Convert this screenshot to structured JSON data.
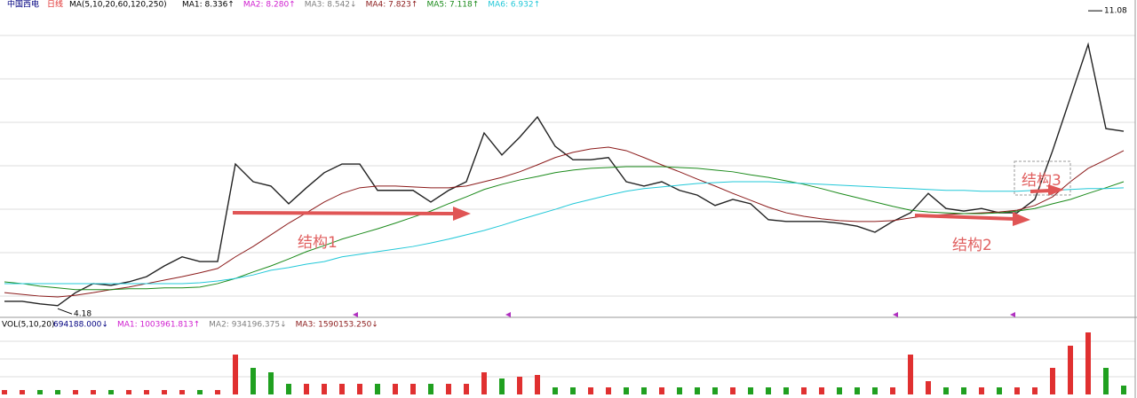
{
  "header": {
    "name": "中国西电",
    "period": "日线",
    "ma_label": "MA(5,10,20,60,120,250)",
    "items": [
      {
        "text": "MA1: 8.336↑",
        "color": "#000000"
      },
      {
        "text": "MA2: 8.280↑",
        "color": "#d020d0"
      },
      {
        "text": "MA3: 8.542↓",
        "color": "#808080"
      },
      {
        "text": "MA4: 7.823↑",
        "color": "#8b1a1a"
      },
      {
        "text": "MA5: 7.118↑",
        "color": "#1a8a1a"
      },
      {
        "text": "MA6: 6.932↑",
        "color": "#22c8d8"
      }
    ]
  },
  "volume_header": {
    "label": "VOL(5,10,20)",
    "items": [
      {
        "text": "694188.000↓",
        "color": "#000080"
      },
      {
        "text": "MA1: 1003961.813↑",
        "color": "#d020d0"
      },
      {
        "text": "MA2: 934196.375↓",
        "color": "#808080"
      },
      {
        "text": "MA3: 1590153.250↓",
        "color": "#8b1a1a"
      }
    ]
  },
  "chart_data": [
    {
      "type": "line",
      "ylim": [
        4.04,
        11.33
      ],
      "high_label": 11.08,
      "low_label": 4.18,
      "annotations": [
        "结构1",
        "结构2",
        "结构3"
      ],
      "series": [
        {
          "color": "#222222",
          "values": [
            4.35,
            4.35,
            4.29,
            4.25,
            4.55,
            4.76,
            4.72,
            4.8,
            4.92,
            5.17,
            5.38,
            5.27,
            5.27,
            7.53,
            7.12,
            7.02,
            6.61,
            6.98,
            7.33,
            7.53,
            7.53,
            6.92,
            6.92,
            6.92,
            6.65,
            6.92,
            7.12,
            8.25,
            7.74,
            8.15,
            8.62,
            7.94,
            7.63,
            7.63,
            7.68,
            7.12,
            7.02,
            7.12,
            6.92,
            6.81,
            6.57,
            6.71,
            6.61,
            6.24,
            6.2,
            6.2,
            6.2,
            6.16,
            6.09,
            5.95,
            6.2,
            6.4,
            6.85,
            6.5,
            6.44,
            6.5,
            6.4,
            6.4,
            6.71,
            7.84,
            9.07,
            10.3,
            8.35,
            8.29
          ]
        },
        {
          "color": "#8b1a1a",
          "values": [
            4.55,
            4.51,
            4.47,
            4.45,
            4.49,
            4.55,
            4.62,
            4.68,
            4.76,
            4.84,
            4.92,
            5.01,
            5.11,
            5.38,
            5.62,
            5.89,
            6.16,
            6.4,
            6.65,
            6.85,
            6.98,
            7.02,
            7.02,
            7.0,
            6.98,
            6.98,
            7.02,
            7.12,
            7.22,
            7.35,
            7.51,
            7.68,
            7.8,
            7.88,
            7.92,
            7.84,
            7.68,
            7.51,
            7.35,
            7.18,
            7.02,
            6.85,
            6.69,
            6.53,
            6.4,
            6.32,
            6.26,
            6.22,
            6.2,
            6.2,
            6.22,
            6.28,
            6.34,
            6.36,
            6.38,
            6.4,
            6.42,
            6.46,
            6.57,
            6.77,
            7.12,
            7.43,
            7.63,
            7.84
          ]
        },
        {
          "color": "#1a8a1a",
          "values": [
            4.8,
            4.76,
            4.7,
            4.66,
            4.62,
            4.62,
            4.62,
            4.64,
            4.64,
            4.66,
            4.66,
            4.68,
            4.76,
            4.88,
            5.03,
            5.17,
            5.33,
            5.5,
            5.64,
            5.79,
            5.91,
            6.03,
            6.16,
            6.3,
            6.44,
            6.61,
            6.77,
            6.94,
            7.06,
            7.16,
            7.24,
            7.33,
            7.39,
            7.43,
            7.45,
            7.47,
            7.47,
            7.47,
            7.45,
            7.43,
            7.39,
            7.35,
            7.28,
            7.22,
            7.14,
            7.06,
            6.96,
            6.85,
            6.75,
            6.65,
            6.55,
            6.46,
            6.42,
            6.4,
            6.38,
            6.38,
            6.4,
            6.44,
            6.5,
            6.61,
            6.71,
            6.85,
            6.98,
            7.12
          ]
        },
        {
          "color": "#22c8d8",
          "values": [
            4.76,
            4.76,
            4.76,
            4.76,
            4.76,
            4.76,
            4.76,
            4.76,
            4.76,
            4.76,
            4.76,
            4.78,
            4.82,
            4.88,
            4.96,
            5.07,
            5.13,
            5.21,
            5.27,
            5.38,
            5.44,
            5.5,
            5.56,
            5.62,
            5.7,
            5.79,
            5.89,
            5.99,
            6.11,
            6.24,
            6.36,
            6.48,
            6.61,
            6.71,
            6.81,
            6.9,
            6.96,
            7.0,
            7.04,
            7.08,
            7.1,
            7.12,
            7.12,
            7.12,
            7.1,
            7.08,
            7.06,
            7.04,
            7.02,
            7.0,
            6.98,
            6.96,
            6.94,
            6.92,
            6.92,
            6.9,
            6.9,
            6.9,
            6.92,
            6.92,
            6.94,
            6.96,
            6.96,
            6.98
          ]
        }
      ]
    },
    {
      "type": "bar",
      "ylim": [
        0,
        6400000
      ],
      "up_color": "#e03030",
      "down_color": "#20a020",
      "values": [
        400000,
        400000,
        400000,
        400000,
        400000,
        400000,
        400000,
        400000,
        400000,
        400000,
        400000,
        400000,
        400000,
        3600000,
        2400000,
        2000000,
        960000,
        960000,
        960000,
        960000,
        960000,
        960000,
        960000,
        960000,
        960000,
        960000,
        960000,
        2000000,
        1440000,
        1600000,
        1760000,
        640000,
        640000,
        640000,
        640000,
        640000,
        640000,
        640000,
        640000,
        640000,
        640000,
        640000,
        640000,
        640000,
        640000,
        640000,
        640000,
        640000,
        640000,
        640000,
        640000,
        3600000,
        1200000,
        640000,
        640000,
        640000,
        640000,
        640000,
        640000,
        2400000,
        4400000,
        5600000,
        2400000,
        800000
      ]
    }
  ]
}
